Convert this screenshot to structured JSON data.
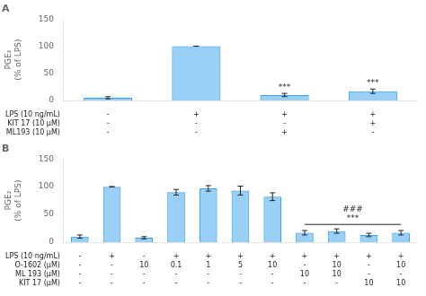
{
  "chart_data": [
    {
      "type": "bar",
      "title": "A",
      "ylabel": "PGE₂\n(% of LPS)",
      "categories": [
        null,
        null,
        null,
        null
      ],
      "values": [
        5,
        100,
        10,
        17
      ],
      "errors": [
        2,
        0,
        3,
        4
      ],
      "significance": [
        null,
        null,
        "***",
        "***"
      ],
      "rows": [
        {
          "label": "LPS (10 ng/mL)",
          "cells": [
            "-",
            "+",
            "+",
            "+"
          ]
        },
        {
          "label": "KIT 17 (10 μM)",
          "cells": [
            "-",
            "-",
            "-",
            "+"
          ]
        },
        {
          "label": "ML193 (10 μM)",
          "cells": [
            "-",
            "-",
            "+",
            "-"
          ]
        }
      ],
      "ylim": [
        0,
        150
      ],
      "yticks": [
        0,
        50,
        100,
        150
      ],
      "grid": false,
      "tick_labels": "y"
    },
    {
      "type": "bar",
      "title": "B",
      "ylabel": "PGE₂\n(% of LPS)",
      "categories": [
        null,
        null,
        null,
        null,
        null,
        null,
        null,
        null,
        null,
        null,
        null
      ],
      "values": [
        10,
        100,
        8,
        90,
        97,
        93,
        82,
        17,
        20,
        13,
        17
      ],
      "errors": [
        3,
        0,
        2,
        5,
        5,
        8,
        7,
        4,
        4,
        3,
        4
      ],
      "bracket": {
        "from": 7,
        "to": 10,
        "y": 32,
        "labels": [
          "***",
          "###"
        ]
      },
      "rows": [
        {
          "label": "LPS (10 ng/mL)",
          "cells": [
            "-",
            "+",
            "-",
            "+",
            "+",
            "+",
            "+",
            "+",
            "+",
            "+",
            "+"
          ]
        },
        {
          "label": "O-1602 (μM)",
          "cells": [
            "-",
            "-",
            "10",
            "0.1",
            "1",
            "5",
            "10",
            "-",
            "10",
            "-",
            "10"
          ]
        },
        {
          "label": "ML 193 (μM)",
          "cells": [
            "-",
            "-",
            "-",
            "-",
            "-",
            "-",
            "-",
            "10",
            "10",
            "-",
            "-"
          ]
        },
        {
          "label": "KIT 17 (μM)",
          "cells": [
            "-",
            "-",
            "-",
            "-",
            "-",
            "-",
            "-",
            "-",
            "-",
            "10",
            "10"
          ]
        }
      ],
      "ylim": [
        0,
        150
      ],
      "yticks": [
        0,
        50,
        100,
        150
      ],
      "grid": false,
      "tick_labels": "y"
    }
  ]
}
